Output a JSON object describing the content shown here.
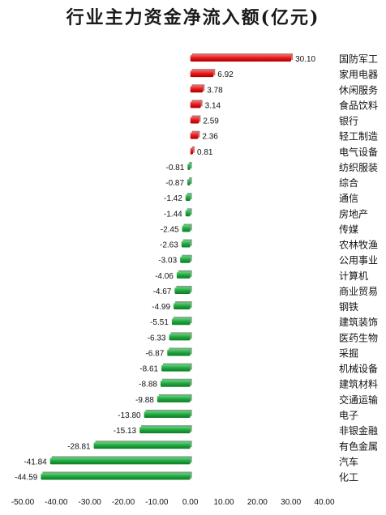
{
  "chart_data": {
    "type": "bar",
    "orientation": "horizontal",
    "title": "行业主力资金净流入额(亿元)",
    "categories": [
      "国防军工",
      "家用电器",
      "休闲服务",
      "食品饮料",
      "银行",
      "轻工制造",
      "电气设备",
      "纺织服装",
      "综合",
      "通信",
      "房地产",
      "传媒",
      "农林牧渔",
      "公用事业",
      "计算机",
      "商业贸易",
      "钢铁",
      "建筑装饰",
      "医药生物",
      "采掘",
      "机械设备",
      "建筑材料",
      "交通运输",
      "电子",
      "非银金融",
      "有色金属",
      "汽车",
      "化工"
    ],
    "values": [
      30.1,
      6.92,
      3.78,
      3.14,
      2.59,
      2.36,
      0.81,
      -0.81,
      -0.87,
      -1.42,
      -1.44,
      -2.45,
      -2.63,
      -3.03,
      -4.06,
      -4.67,
      -4.99,
      -5.51,
      -6.33,
      -6.87,
      -8.61,
      -8.88,
      -9.88,
      -13.8,
      -15.13,
      -28.81,
      -41.84,
      -44.59
    ],
    "value_labels": [
      "30.10",
      "6.92",
      "3.78",
      "3.14",
      "2.59",
      "2.36",
      "0.81",
      "-0.81",
      "-0.87",
      "-1.42",
      "-1.44",
      "-2.45",
      "-2.63",
      "-3.03",
      "-4.06",
      "-4.67",
      "-4.99",
      "-5.51",
      "-6.33",
      "-6.87",
      "-8.61",
      "-8.88",
      "-9.88",
      "-13.80",
      "-15.13",
      "-28.81",
      "-41.84",
      "-44.59"
    ],
    "xlim": [
      -50,
      40
    ],
    "xticks": [
      "-50.00",
      "-40.00",
      "-30.00",
      "-20.00",
      "-10.00",
      "0.00",
      "10.00",
      "20.00",
      "30.00",
      "40.00"
    ],
    "xtick_values": [
      -50,
      -40,
      -30,
      -20,
      -10,
      0,
      10,
      20,
      30,
      40
    ],
    "grid": false,
    "legend": "none",
    "colors": {
      "positive": "#e31a1c",
      "negative": "#1faa3e"
    }
  }
}
